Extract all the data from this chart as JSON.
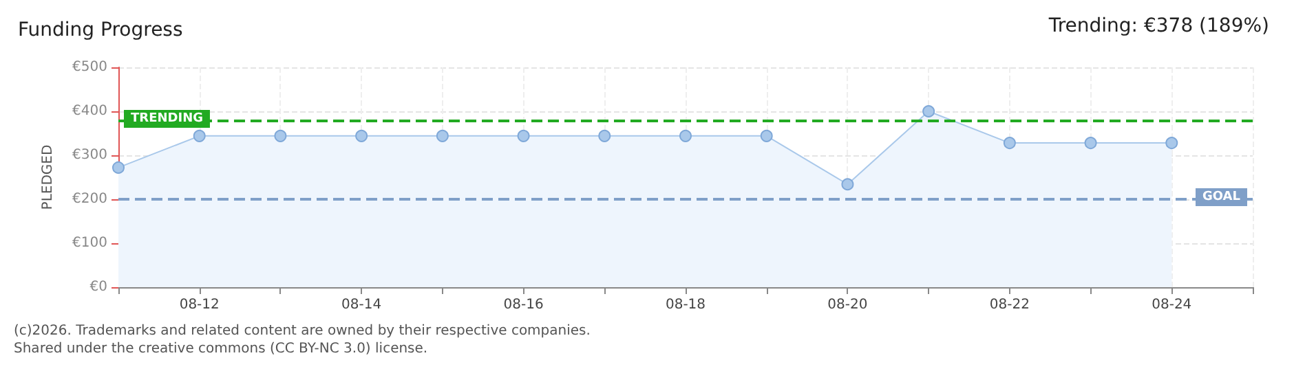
{
  "chart_data": {
    "type": "area",
    "title": "Funding Progress",
    "ylabel": "PLEDGED",
    "annotations": [
      "Trending: €378 (189%)",
      "(c)2026. Trademarks and related content are owned by their respective companies.",
      "Shared under the creative commons (CC BY-NC 3.0) license."
    ],
    "x": [
      "--08-11",
      "--08-12",
      "--08-13",
      "--08-14",
      "--08-15",
      "--08-16",
      "--08-17",
      "--08-18",
      "--08-19",
      "--08-20",
      "--08-21",
      "--08-22",
      "--08-23",
      "--08-24"
    ],
    "series": [
      {
        "color": "#a9c8ea",
        "values": [
          272,
          344,
          344,
          344,
          344,
          344,
          344,
          344,
          344,
          234,
          400,
          328,
          328,
          328
        ]
      }
    ],
    "xlim": [
      "--08-11",
      "--08-25"
    ],
    "xticks": [
      {
        "value": "--08-11",
        "label": null
      },
      {
        "value": "--08-12",
        "label": "08-12"
      },
      {
        "value": "--08-13",
        "label": null
      },
      {
        "value": "--08-14",
        "label": "08-14"
      },
      {
        "value": "--08-15",
        "label": null
      },
      {
        "value": "--08-16",
        "label": "08-16"
      },
      {
        "value": "--08-17",
        "label": null
      },
      {
        "value": "--08-18",
        "label": "08-18"
      },
      {
        "value": "--08-19",
        "label": null
      },
      {
        "value": "--08-20",
        "label": "08-20"
      },
      {
        "value": "--08-21",
        "label": null
      },
      {
        "value": "--08-22",
        "label": "08-22"
      },
      {
        "value": "--08-23",
        "label": null
      },
      {
        "value": "--08-24",
        "label": "08-24"
      },
      {
        "value": "--08-25",
        "label": null
      }
    ],
    "ylim": [
      0,
      500
    ],
    "yticks": [
      {
        "value": 0,
        "label": "€0"
      },
      {
        "value": 100,
        "label": "€100"
      },
      {
        "value": 200,
        "label": "€200"
      },
      {
        "value": 300,
        "label": "€300"
      },
      {
        "value": 400,
        "label": "€400"
      },
      {
        "value": 500,
        "label": "€500"
      }
    ],
    "ref_lines": [
      {
        "axis": "y",
        "value": 378,
        "label": "TRENDING",
        "color": "#22aa22",
        "line_style": "dashed"
      },
      {
        "axis": "y",
        "value": 200,
        "label": "GOAL",
        "color": "#7f9fc8",
        "line_style": "dashed"
      }
    ],
    "grid": true,
    "marker": "circle",
    "line_style": "solid"
  }
}
